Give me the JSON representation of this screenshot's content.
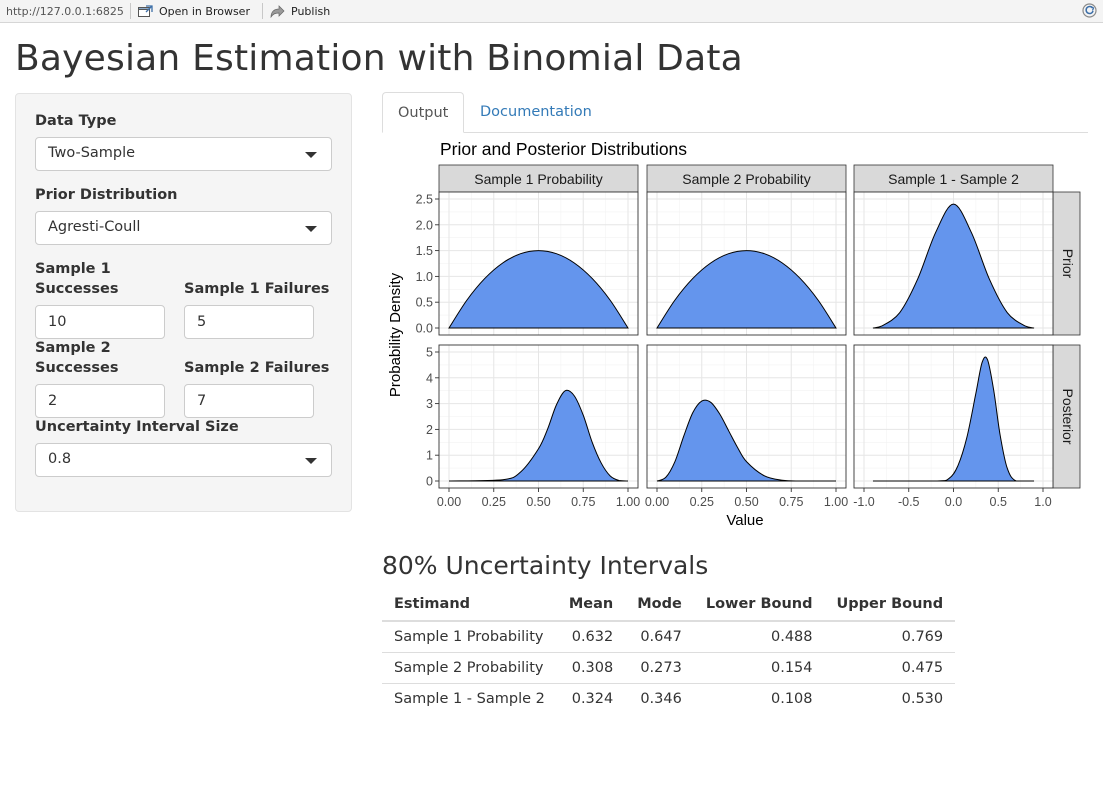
{
  "toolbar": {
    "url": "http://127.0.0.1:6825",
    "open_browser_label": "Open in Browser",
    "publish_label": "Publish"
  },
  "page_title": "Bayesian Estimation with Binomial Data",
  "sidebar": {
    "data_type": {
      "label": "Data Type",
      "value": "Two-Sample"
    },
    "prior": {
      "label": "Prior Distribution",
      "value": "Agresti-Coull"
    },
    "s1_successes": {
      "label_line1": "Sample 1",
      "label_line2": "Successes",
      "value": "10"
    },
    "s1_failures": {
      "label": "Sample 1 Failures",
      "value": "5"
    },
    "s2_successes": {
      "label_line1": "Sample 2",
      "label_line2": "Successes",
      "value": "2"
    },
    "s2_failures": {
      "label": "Sample 2 Failures",
      "value": "7"
    },
    "interval_size": {
      "label": "Uncertainty Interval Size",
      "value": "0.8"
    }
  },
  "tabs": [
    {
      "label": "Output",
      "active": true
    },
    {
      "label": "Documentation",
      "active": false
    }
  ],
  "colors": {
    "fill": "#6495ED",
    "strip": "#d9d9d9",
    "link": "#337ab7"
  },
  "chart_data": {
    "type": "area",
    "title": "Prior and Posterior Distributions",
    "xlabel": "Value",
    "ylabel": "Probability Density",
    "column_strips": [
      "Sample 1 Probability",
      "Sample 2 Probability",
      "Sample 1 - Sample 2"
    ],
    "row_strips": [
      "Prior",
      "Posterior"
    ],
    "x_ticks": [
      [
        "0.00",
        "0.25",
        "0.50",
        "0.75",
        "1.00"
      ],
      [
        "0.00",
        "0.25",
        "0.50",
        "0.75",
        "1.00"
      ],
      [
        "-1.0",
        "-0.5",
        "0.0",
        "0.5",
        "1.0"
      ]
    ],
    "xlim": [
      [
        0,
        1
      ],
      [
        0,
        1
      ],
      [
        -1,
        1
      ]
    ],
    "y_ticks": [
      [
        "0.0",
        "0.5",
        "1.0",
        "1.5",
        "2.0",
        "2.5"
      ],
      [
        "0",
        "1",
        "2",
        "3",
        "4",
        "5"
      ]
    ],
    "ylim": [
      [
        0,
        2.5
      ],
      [
        0,
        5
      ]
    ],
    "grid": true,
    "panels": [
      {
        "row": 0,
        "col": 0,
        "x": [
          0.0,
          0.1,
          0.2,
          0.3,
          0.4,
          0.5,
          0.6,
          0.7,
          0.8,
          0.9,
          1.0
        ],
        "y": [
          0.0,
          0.54,
          0.96,
          1.26,
          1.44,
          1.5,
          1.44,
          1.26,
          0.96,
          0.54,
          0.0
        ]
      },
      {
        "row": 0,
        "col": 1,
        "x": [
          0.0,
          0.1,
          0.2,
          0.3,
          0.4,
          0.5,
          0.6,
          0.7,
          0.8,
          0.9,
          1.0
        ],
        "y": [
          0.0,
          0.54,
          0.96,
          1.26,
          1.44,
          1.5,
          1.44,
          1.26,
          0.96,
          0.54,
          0.0
        ]
      },
      {
        "row": 0,
        "col": 2,
        "x": [
          -0.9,
          -0.8,
          -0.6,
          -0.4,
          -0.2,
          0.0,
          0.2,
          0.4,
          0.6,
          0.8,
          0.9
        ],
        "y": [
          0.0,
          0.04,
          0.3,
          0.95,
          1.85,
          2.4,
          1.85,
          0.95,
          0.3,
          0.04,
          0.0
        ]
      },
      {
        "row": 1,
        "col": 0,
        "x": [
          0.0,
          0.3,
          0.4,
          0.5,
          0.55,
          0.6,
          0.65,
          0.7,
          0.75,
          0.8,
          0.85,
          0.9,
          0.95,
          1.0
        ],
        "y": [
          0.0,
          0.05,
          0.35,
          1.25,
          2.0,
          2.95,
          3.5,
          3.3,
          2.55,
          1.5,
          0.7,
          0.2,
          0.02,
          0.0
        ]
      },
      {
        "row": 1,
        "col": 1,
        "x": [
          0.0,
          0.05,
          0.1,
          0.15,
          0.2,
          0.25,
          0.3,
          0.35,
          0.4,
          0.45,
          0.5,
          0.6,
          0.7,
          0.8,
          1.0
        ],
        "y": [
          0.0,
          0.15,
          0.75,
          1.75,
          2.65,
          3.1,
          3.05,
          2.6,
          1.95,
          1.3,
          0.75,
          0.2,
          0.03,
          0.0,
          0.0
        ]
      },
      {
        "row": 1,
        "col": 2,
        "x": [
          -0.9,
          -0.2,
          -0.05,
          0.05,
          0.15,
          0.25,
          0.32,
          0.38,
          0.45,
          0.52,
          0.6,
          0.7,
          0.9
        ],
        "y": [
          0.0,
          0.0,
          0.1,
          0.6,
          1.7,
          3.4,
          4.6,
          4.7,
          3.5,
          1.8,
          0.5,
          0.0,
          0.0
        ]
      }
    ]
  },
  "intervals": {
    "title": "80% Uncertainty Intervals",
    "headers": [
      "Estimand",
      "Mean",
      "Mode",
      "Lower Bound",
      "Upper Bound"
    ],
    "rows": [
      [
        "Sample 1 Probability",
        "0.632",
        "0.647",
        "0.488",
        "0.769"
      ],
      [
        "Sample 2 Probability",
        "0.308",
        "0.273",
        "0.154",
        "0.475"
      ],
      [
        "Sample 1 - Sample 2",
        "0.324",
        "0.346",
        "0.108",
        "0.530"
      ]
    ]
  }
}
